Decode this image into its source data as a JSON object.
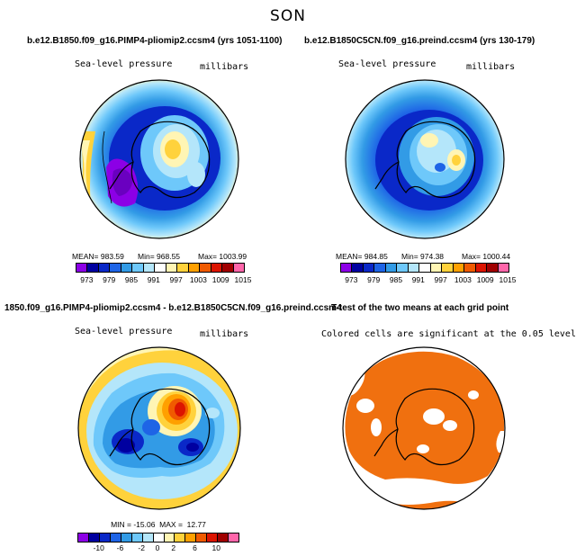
{
  "season": "SON",
  "panels": {
    "tl": {
      "title": "b.e12.B1850.f09_g16.PIMP4-pliomip2.ccsm4 (yrs 1051-1100)",
      "left_label": "Sea-level pressure",
      "right_label": "millibars",
      "mean_label": "MEAN= 983.59",
      "min_label": "Min= 968.55",
      "max_label": "Max= 1003.99"
    },
    "tr": {
      "title": "b.e12.B1850C5CN.f09_g16.preind.ccsm4 (yrs 130-179)",
      "left_label": "Sea-level pressure",
      "right_label": "millibars",
      "mean_label": "MEAN= 984.85",
      "min_label": "Min= 974.38",
      "max_label": "Max= 1000.44"
    },
    "bl": {
      "title": "1850.f09_g16.PIMP4-pliomip2.ccsm4 - b.e12.B1850C5CN.f09_g16.preind.ccsm4",
      "left_label": "Sea-level pressure",
      "right_label": "millibars",
      "minmax_label": "MIN = -15.06  MAX =  12.77"
    },
    "br": {
      "title": "T-test of the two means at each grid point",
      "subtitle": "Colored cells are significant at the 0.05 level"
    }
  },
  "colorbars": {
    "slp": {
      "ticks": [
        "973",
        "979",
        "985",
        "991",
        "997",
        "1003",
        "1009",
        "1015"
      ],
      "colors": [
        "#8c00e6",
        "#0000a0",
        "#0a28c8",
        "#1e64e6",
        "#329be6",
        "#6ec8fa",
        "#b4e6fa",
        "#ffffff",
        "#fff5b4",
        "#ffd23c",
        "#ffa000",
        "#f05a00",
        "#dc1400",
        "#a00000",
        "#ff66aa"
      ]
    },
    "diff": {
      "ticks": [
        "-10",
        "-6",
        "-2",
        "0",
        "2",
        "6",
        "10"
      ],
      "colors": [
        "#8c00e6",
        "#0000a0",
        "#0a28c8",
        "#1e64e6",
        "#329be6",
        "#6ec8fa",
        "#b4e6fa",
        "#ffffff",
        "#fff5b4",
        "#ffd23c",
        "#ffa000",
        "#f05a00",
        "#dc1400",
        "#a00000",
        "#ff66aa"
      ]
    }
  },
  "ttest_color": "#f0700f"
}
